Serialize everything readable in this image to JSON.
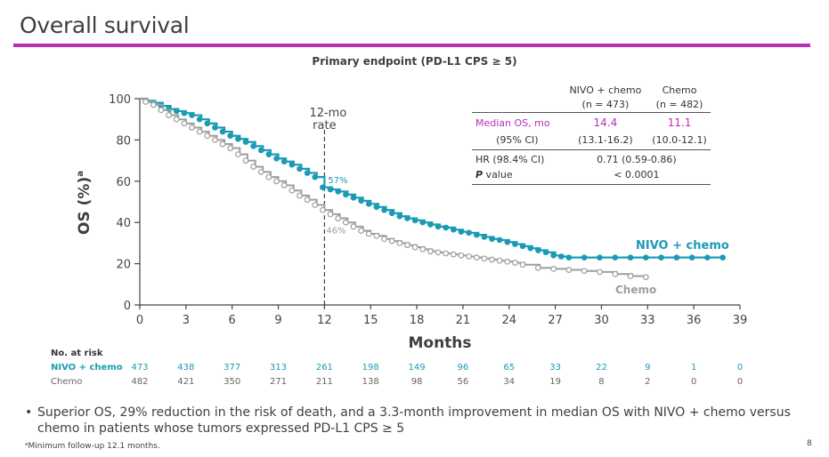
{
  "slide": {
    "title": "Overall survival",
    "subtitle": "Primary endpoint (PD-L1 CPS ≥ 5)",
    "accent_color": "#b92db9",
    "page_number": "8"
  },
  "stats_table": {
    "col_headers": [
      {
        "line1": "NIVO + chemo",
        "line2": "(n = 473)"
      },
      {
        "line1": "Chemo",
        "line2": "(n = 482)"
      }
    ],
    "median_label": "Median OS, mo",
    "median_values": [
      "14.4",
      "11.1"
    ],
    "ci_label": "(95% CI)",
    "ci_values": [
      "(13.1-16.2)",
      "(10.0-12.1)"
    ],
    "hr_label": "HR (98.4% CI)",
    "hr_value": "0.71 (0.59-0.86)",
    "p_label_italic": "P",
    "p_label_rest": " value",
    "p_value": "< 0.0001"
  },
  "risk_table": {
    "title": "No. at risk",
    "rows": [
      {
        "label": "NIVO + chemo",
        "values": [
          "473",
          "438",
          "377",
          "313",
          "261",
          "198",
          "149",
          "96",
          "65",
          "33",
          "22",
          "9",
          "1",
          "0"
        ]
      },
      {
        "label": "Chemo",
        "values": [
          "482",
          "421",
          "350",
          "271",
          "211",
          "138",
          "98",
          "56",
          "34",
          "19",
          "8",
          "2",
          "0",
          "0"
        ]
      }
    ]
  },
  "bullet": "Superior OS, 29% reduction in the risk of death, and a 3.3-month improvement in median OS with NIVO + chemo versus chemo in patients whose tumors expressed PD-L1 CPS ≥ 5",
  "footnote": "ᵃMinimum follow-up 12.1 months.",
  "chart_data": {
    "type": "line",
    "title": "Primary endpoint (PD-L1 CPS ≥ 5)",
    "xlabel": "Months",
    "ylabel": "OS (%)",
    "ylabel_superscript": "a",
    "xlim": [
      0,
      39
    ],
    "ylim": [
      0,
      100
    ],
    "x_ticks": [
      0,
      3,
      6,
      9,
      12,
      15,
      18,
      21,
      24,
      27,
      30,
      33,
      36,
      39
    ],
    "y_ticks": [
      0,
      20,
      40,
      60,
      80,
      100
    ],
    "grid": false,
    "reference_line": {
      "x": 12,
      "label_line1": "12-mo",
      "label_line2": "rate",
      "style": "dashed"
    },
    "annotations": [
      {
        "text": "57%",
        "x": 12,
        "y": 57,
        "series": "NIVO + chemo"
      },
      {
        "text": "46%",
        "x": 12,
        "y": 46,
        "series": "Chemo"
      }
    ],
    "series": [
      {
        "name": "NIVO + chemo",
        "label": "NIVO + chemo",
        "color": "#1a9bb5",
        "marker": "filled-circle",
        "x": [
          0,
          0.5,
          1,
          1.5,
          2,
          2.5,
          3,
          3.5,
          4,
          4.5,
          5,
          5.5,
          6,
          6.5,
          7,
          7.5,
          8,
          8.5,
          9,
          9.5,
          10,
          10.5,
          11,
          11.5,
          12,
          12.5,
          13,
          13.5,
          14,
          14.5,
          15,
          15.5,
          16,
          16.5,
          17,
          17.5,
          18,
          18.5,
          19,
          19.5,
          20,
          20.5,
          21,
          21.5,
          22,
          22.5,
          23,
          23.5,
          24,
          24.5,
          25,
          25.5,
          26,
          26.5,
          27,
          27.5,
          28,
          29,
          30,
          31,
          32,
          33,
          34,
          35,
          36,
          37,
          38
        ],
        "y": [
          100,
          99,
          98,
          96.5,
          95,
          94,
          93,
          92,
          90,
          88,
          86,
          84,
          82,
          80.5,
          79,
          77,
          75,
          73,
          71,
          69.5,
          68,
          66,
          64,
          62,
          57,
          56,
          55,
          53.5,
          52,
          50.5,
          49,
          47.5,
          46,
          44.5,
          43,
          42,
          41,
          40,
          39,
          38,
          37.5,
          36.5,
          35.5,
          35,
          34,
          33,
          32,
          31.5,
          30.5,
          29.5,
          28.5,
          27.5,
          26.5,
          25.5,
          24,
          23.5,
          23,
          23,
          23,
          23,
          23,
          23,
          23,
          23,
          23,
          23,
          23
        ],
        "median_os_months": 14.4,
        "n": 473
      },
      {
        "name": "Chemo",
        "label": "Chemo",
        "color": "#9e9e9e",
        "marker": "open-circle",
        "x": [
          0,
          0.5,
          1,
          1.5,
          2,
          2.5,
          3,
          3.5,
          4,
          4.5,
          5,
          5.5,
          6,
          6.5,
          7,
          7.5,
          8,
          8.5,
          9,
          9.5,
          10,
          10.5,
          11,
          11.5,
          12,
          12.5,
          13,
          13.5,
          14,
          14.5,
          15,
          15.5,
          16,
          16.5,
          17,
          17.5,
          18,
          18.5,
          19,
          19.5,
          20,
          20.5,
          21,
          21.5,
          22,
          22.5,
          23,
          23.5,
          24,
          24.5,
          25,
          26,
          27,
          28,
          29,
          30,
          31,
          32,
          33
        ],
        "y": [
          100,
          98.5,
          97,
          94.5,
          92,
          90,
          88,
          86,
          84,
          82,
          80,
          78,
          76,
          73,
          70,
          67,
          64.5,
          62,
          60,
          58,
          55.5,
          53,
          51,
          48.5,
          46,
          44,
          42,
          40,
          38,
          36,
          34.5,
          33.5,
          32,
          31,
          30,
          29,
          28,
          27,
          26,
          25.5,
          25,
          24.5,
          24,
          23.5,
          23,
          22.5,
          22,
          21.5,
          21,
          20.5,
          19.5,
          18,
          17.5,
          17,
          16.5,
          16,
          15,
          14,
          13.5
        ],
        "median_os_months": 11.1,
        "n": 482
      }
    ]
  }
}
